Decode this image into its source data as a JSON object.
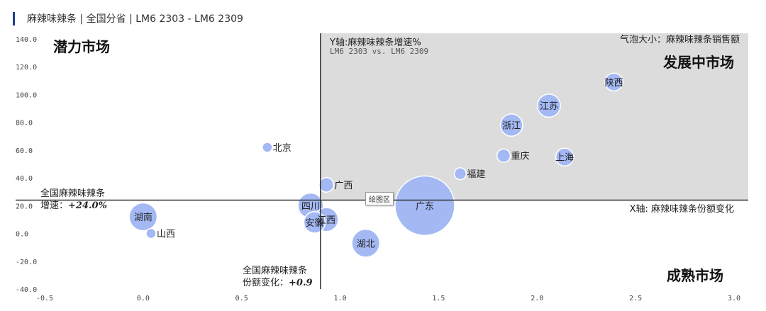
{
  "header": {
    "title": "麻辣味辣条 | 全国分省 | LM6 2303 - LM6 2309"
  },
  "quadrants": {
    "top_left": "潜力市场",
    "top_right": "发展中市场",
    "bottom_right": "成熟市场"
  },
  "annotations": {
    "y_title": "Y轴:麻辣味辣条增速%",
    "y_subtitle": "LM6 2303  vs.  LM6 2309",
    "x_title": "X轴: 麻辣味辣条份额变化",
    "size_note": "气泡大小：麻辣味辣条销售额",
    "national_growth_label": "全国麻辣味辣条",
    "national_growth_prefix": "增速：",
    "national_growth_value": "+24.0%",
    "national_share_label": "全国麻辣味辣条",
    "national_share_prefix": "份额变化：",
    "national_share_value": "+0.9",
    "plot_area_tag": "绘图区"
  },
  "colors": {
    "bubble": "#a4b9f4",
    "bubble_stroke": "#ffffff",
    "quadrant_fill": "#dcdcdc",
    "divider": "#333333",
    "title_bar": "#1f3d8a"
  },
  "chart_data": {
    "type": "scatter",
    "variant": "bubble",
    "xlim": [
      -0.5,
      3.0
    ],
    "ylim": [
      -40,
      140
    ],
    "x_ticks": [
      "-0.5",
      "0.0",
      "0.5",
      "1.0",
      "1.5",
      "2.0",
      "2.5",
      "3.0"
    ],
    "x_tick_values": [
      -0.5,
      0.0,
      0.5,
      1.0,
      1.5,
      2.0,
      2.5,
      3.0
    ],
    "y_ticks": [
      "-40.0",
      "-20.0",
      "0.0",
      "20.0",
      "40.0",
      "60.0",
      "80.0",
      "100.0",
      "120.0",
      "140.0"
    ],
    "y_tick_values": [
      -40,
      -20,
      0,
      20,
      40,
      60,
      80,
      100,
      120,
      140
    ],
    "reference_x": 0.9,
    "reference_y": 24.0,
    "highlight_quadrant": "top-right",
    "points": [
      {
        "name": "广东",
        "x": 1.43,
        "y": 20.0,
        "size": 100
      },
      {
        "name": "湖南",
        "x": 0.0,
        "y": 12.0,
        "size": 22
      },
      {
        "name": "山西",
        "x": 0.04,
        "y": 0.0,
        "size": 1.5
      },
      {
        "name": "北京",
        "x": 0.63,
        "y": 62.0,
        "size": 1
      },
      {
        "name": "四川",
        "x": 0.85,
        "y": 20.0,
        "size": 18
      },
      {
        "name": "广西",
        "x": 0.93,
        "y": 35.0,
        "size": 6
      },
      {
        "name": "安徽",
        "x": 0.87,
        "y": 8.0,
        "size": 13
      },
      {
        "name": "江西",
        "x": 0.93,
        "y": 10.0,
        "size": 16
      },
      {
        "name": "湖北",
        "x": 1.13,
        "y": -7.0,
        "size": 22
      },
      {
        "name": "福建",
        "x": 1.61,
        "y": 43.0,
        "size": 4
      },
      {
        "name": "重庆",
        "x": 1.83,
        "y": 56.0,
        "size": 5
      },
      {
        "name": "浙江",
        "x": 1.87,
        "y": 78.0,
        "size": 14
      },
      {
        "name": "江苏",
        "x": 2.06,
        "y": 92.0,
        "size": 15
      },
      {
        "name": "上海",
        "x": 2.14,
        "y": 55.0,
        "size": 9
      },
      {
        "name": "陕西",
        "x": 2.39,
        "y": 109.0,
        "size": 9
      }
    ]
  }
}
